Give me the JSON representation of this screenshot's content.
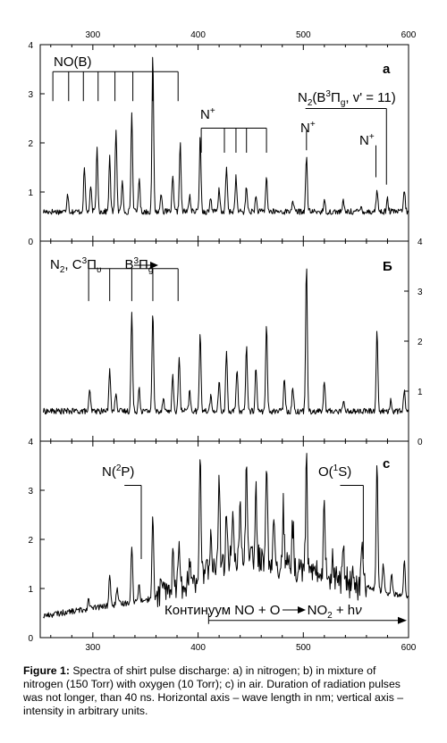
{
  "chart_data": [
    {
      "type": "line",
      "panel_label": "a",
      "title": "",
      "xlabel": "",
      "ylabel": "",
      "xlim": [
        250,
        600
      ],
      "ylim": [
        0,
        4
      ],
      "x_ticks": [
        300,
        400,
        500,
        600
      ],
      "y_ticks": [
        0,
        1,
        2,
        3,
        4
      ],
      "y_axis_side": "left",
      "x_ticks_on_top": true,
      "baseline": 0.6,
      "peaks": [
        [
          276,
          1.0
        ],
        [
          292,
          1.5
        ],
        [
          298,
          1.1
        ],
        [
          304,
          1.9
        ],
        [
          316,
          1.7
        ],
        [
          322,
          2.3
        ],
        [
          328,
          1.2
        ],
        [
          337,
          2.6
        ],
        [
          344,
          1.3
        ],
        [
          357,
          3.8
        ],
        [
          365,
          1.0
        ],
        [
          376,
          1.3
        ],
        [
          383,
          2.0
        ],
        [
          392,
          0.95
        ],
        [
          402,
          2.1
        ],
        [
          412,
          0.9
        ],
        [
          420,
          1.05
        ],
        [
          427,
          1.5
        ],
        [
          436,
          1.3
        ],
        [
          446,
          1.1
        ],
        [
          455,
          0.9
        ],
        [
          465,
          1.3
        ],
        [
          490,
          0.85
        ],
        [
          503,
          1.7
        ],
        [
          520,
          0.8
        ],
        [
          538,
          0.8
        ],
        [
          555,
          0.7
        ],
        [
          570,
          1.05
        ],
        [
          580,
          0.85
        ],
        [
          596,
          1.05
        ]
      ],
      "annotations": [
        {
          "text": "NO(B)",
          "lines_x": [
            262,
            277,
            291,
            305,
            321,
            338,
            357,
            381
          ],
          "bar_y": 3.45,
          "bottom_y": 2.85
        },
        {
          "text": "N+",
          "lines_x": [
            403,
            425,
            436,
            446,
            465
          ],
          "bar_y": 2.3,
          "bottom_y": 1.8
        },
        {
          "text": "N2(B3Πg, v' = 11)",
          "lines_x": [
            579
          ],
          "bar_y": 2.7,
          "bottom_y": 1.15
        },
        {
          "text": "N+",
          "lines_x": [
            503
          ],
          "bar_y": 2.25,
          "bottom_y": 1.85
        },
        {
          "text": "N+",
          "lines_x": [
            569
          ],
          "bar_y": 1.95,
          "bottom_y": 1.3
        }
      ]
    },
    {
      "type": "line",
      "panel_label": "Б",
      "title": "",
      "xlabel": "",
      "ylabel": "",
      "xlim": [
        250,
        600
      ],
      "ylim": [
        0,
        4
      ],
      "y_ticks": [
        0,
        1,
        2,
        3,
        4
      ],
      "y_axis_side": "right",
      "baseline": 0.6,
      "peaks": [
        [
          297,
          1.0
        ],
        [
          316,
          1.5
        ],
        [
          322,
          1.0
        ],
        [
          337,
          2.6
        ],
        [
          344,
          1.1
        ],
        [
          357,
          2.6
        ],
        [
          367,
          0.9
        ],
        [
          376,
          1.3
        ],
        [
          382,
          1.7
        ],
        [
          392,
          1.0
        ],
        [
          402,
          2.2
        ],
        [
          412,
          0.9
        ],
        [
          420,
          1.2
        ],
        [
          427,
          1.8
        ],
        [
          437,
          1.4
        ],
        [
          446,
          1.9
        ],
        [
          455,
          1.5
        ],
        [
          465,
          2.3
        ],
        [
          482,
          1.3
        ],
        [
          490,
          1.1
        ],
        [
          503,
          3.5
        ],
        [
          520,
          1.2
        ],
        [
          538,
          0.8
        ],
        [
          570,
          2.2
        ],
        [
          583,
          0.8
        ],
        [
          596,
          1.0
        ]
      ],
      "annotations": [
        {
          "text": "N2, C3Πu → B3Πg",
          "lines_x": [
            296,
            316,
            337,
            357,
            381
          ],
          "bar_y": 3.45,
          "bottom_y": 2.8
        }
      ]
    },
    {
      "type": "line",
      "panel_label": "c",
      "title": "",
      "xlabel": "",
      "ylabel": "",
      "xlim": [
        250,
        600
      ],
      "ylim": [
        0,
        4
      ],
      "x_ticks": [
        300,
        400,
        500,
        600
      ],
      "y_ticks": [
        0,
        1,
        2,
        3,
        4
      ],
      "y_axis_side": "left",
      "x_ticks_on_bottom": true,
      "continuum": {
        "start_x": 255,
        "end_x": 600,
        "start_y": 0.45,
        "peak_x": 440,
        "peak_y": 1.7
      },
      "peaks": [
        [
          296,
          0.8
        ],
        [
          316,
          1.3
        ],
        [
          323,
          1.0
        ],
        [
          337,
          1.9
        ],
        [
          344,
          1.1
        ],
        [
          357,
          2.5
        ],
        [
          365,
          1.2
        ],
        [
          376,
          1.6
        ],
        [
          382,
          2.2
        ],
        [
          392,
          1.5
        ],
        [
          402,
          3.6
        ],
        [
          412,
          2.1
        ],
        [
          420,
          3.3
        ],
        [
          427,
          2.7
        ],
        [
          433,
          2.4
        ],
        [
          440,
          2.9
        ],
        [
          446,
          3.5
        ],
        [
          455,
          3.1
        ],
        [
          465,
          3.6
        ],
        [
          472,
          2.5
        ],
        [
          481,
          2.7
        ],
        [
          490,
          2.3
        ],
        [
          503,
          3.6
        ],
        [
          520,
          2.8
        ],
        [
          528,
          1.6
        ],
        [
          538,
          1.9
        ],
        [
          547,
          1.4
        ],
        [
          556,
          2.1
        ],
        [
          570,
          3.6
        ],
        [
          576,
          1.5
        ],
        [
          584,
          1.3
        ],
        [
          596,
          1.6
        ]
      ],
      "annotations": [
        {
          "text": "N(2P)",
          "lines_x": [
            346
          ],
          "bar_y": 3.1,
          "bottom_y": 1.6
        },
        {
          "text": "O(1S)",
          "lines_x": [
            557
          ],
          "bar_y": 3.1,
          "bottom_y": 1.6
        },
        {
          "text": "Континуум NO + O → NO2 + hν",
          "arrow_from_x": 410,
          "arrow_to_x": 600,
          "y": 0.35
        }
      ]
    }
  ],
  "labels": {
    "panel_a": "a",
    "panel_b": "Б",
    "panel_c": "c",
    "nob": "NO(B)",
    "nplus": "N",
    "plus": "+",
    "n2_a_1": "N",
    "n2_a_2": "2",
    "n2_a_3": "(B",
    "n2_a_4": "3",
    "n2_a_5": "Π",
    "n2_a_6": "g",
    "n2_a_7": ", v' = 11)",
    "n2_b_1": "N",
    "n2_b_2": "2",
    "n2_b_3": ", C",
    "n2_b_4": "3",
    "n2_b_5": "Π",
    "n2_b_6": "υ",
    "n2_b_7": "B",
    "n2_b_8": "3",
    "n2_b_9": "Π",
    "n2_b_10": "g",
    "n2p_1": "N(",
    "n2p_2": "2",
    "n2p_3": "P)",
    "o1s_1": "O(",
    "o1s_2": "1",
    "o1s_3": "S)",
    "cont_1": "Континуум NO + O ",
    "cont_2": "NO",
    "cont_3": "2",
    "cont_4": " +  h",
    "cont_5": "ν"
  },
  "caption": {
    "label": "Figure 1:",
    "text": " Spectra of shirt pulse discharge: a) in nitrogen; b) in mixture of nitrogen (150 Torr) with oxygen (10 Torr); c) in air. Duration of radiation pulses was not longer, than 40 ns. Horizontal axis – wave length in nm; vertical axis – intensity in arbitrary units."
  }
}
